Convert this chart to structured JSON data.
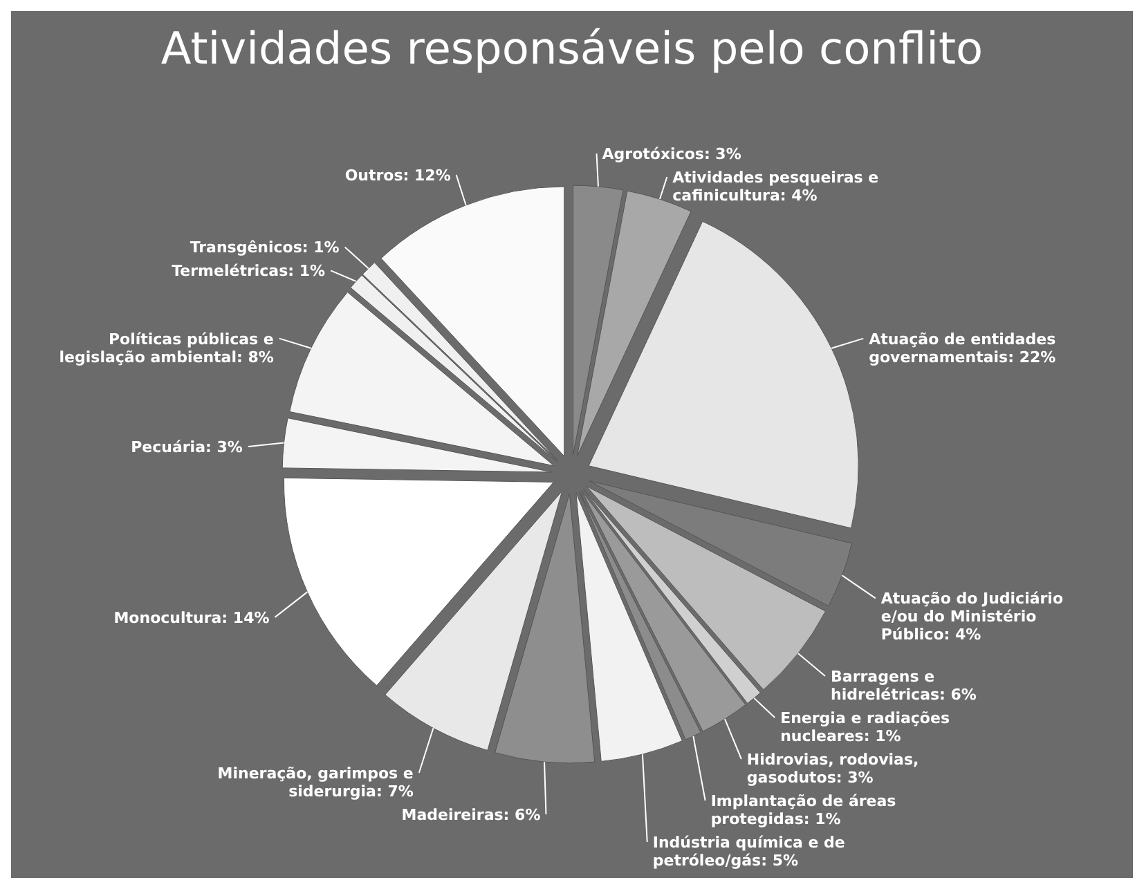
{
  "chart_data": {
    "type": "pie",
    "title": "Atividades responsáveis pelo conflito",
    "categories": [
      "Agrotóxicos",
      "Atividades pesqueiras e cafinicultura",
      "Atuação de entidades governamentais",
      "Atuação do Judiciário e/ou do Ministério Público",
      "Barragens e  hidrelétricas",
      "Energia e radiações nucleares",
      "Hidrovias, rodovias, gasodutos",
      "Implantação de áreas protegidas",
      "Indústria química e de petróleo/gás",
      "Madeireiras",
      "Mineração, garimpos e siderurgia",
      "Monocultura",
      "Pecuária",
      "Políticas públicas e legislação ambiental",
      "Termelétricas",
      "Transgênicos",
      "Outros"
    ],
    "values": [
      3,
      4,
      22,
      4,
      6,
      1,
      3,
      1,
      5,
      6,
      7,
      14,
      3,
      8,
      1,
      1,
      12
    ],
    "value_labels": [
      "3%",
      "4%",
      "22%",
      "4%",
      "6%",
      "1%",
      "3%",
      "1%",
      "5%",
      "6%",
      "7%",
      "14%",
      "3%",
      "8%",
      "1%",
      "1%",
      "12%"
    ],
    "colors": [
      "#8a8a8a",
      "#a8a8a8",
      "#e6e6e6",
      "#7c7c7c",
      "#bdbdbd",
      "#d0d0d0",
      "#9a9a9a",
      "#8c8c8c",
      "#f2f2f2",
      "#8e8e8e",
      "#e8e8e8",
      "#ffffff",
      "#f4f4f4",
      "#f4f4f4",
      "#f0f0f0",
      "#f0f0f0",
      "#fafafa"
    ],
    "data_labels": true
  }
}
